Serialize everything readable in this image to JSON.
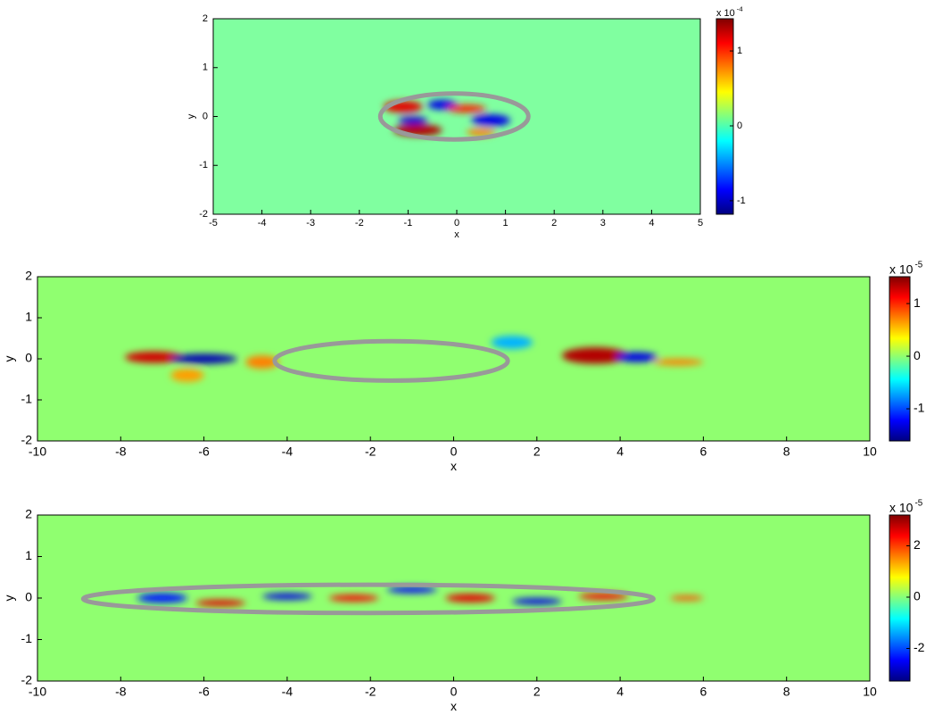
{
  "chart_data": [
    {
      "type": "heatmap",
      "xlabel": "x",
      "ylabel": "y",
      "xlim": [
        -5,
        5
      ],
      "ylim": [
        -2,
        2
      ],
      "xticks": [
        -5,
        -4,
        -3,
        -2,
        -1,
        0,
        1,
        2,
        3,
        4,
        5
      ],
      "yticks": [
        -2,
        -1,
        0,
        1,
        2
      ],
      "background": "#80ffa0",
      "colormap": "jet",
      "ellipse": {
        "cx": -0.05,
        "cy": 0,
        "rx": 1.52,
        "ry": 0.47,
        "color": "#999999"
      },
      "colorbar": {
        "clim": [
          -1.18,
          1.43
        ],
        "ticks": [
          -1,
          0,
          1
        ],
        "scale": "x 10",
        "exponent": "-4"
      }
    },
    {
      "type": "heatmap",
      "xlabel": "x",
      "ylabel": "y",
      "xlim": [
        -10,
        10
      ],
      "ylim": [
        -2,
        2
      ],
      "xticks": [
        -10,
        -8,
        -6,
        -4,
        -2,
        0,
        2,
        4,
        6,
        8,
        10
      ],
      "yticks": [
        -2,
        -1,
        0,
        1,
        2
      ],
      "background": "#90ff70",
      "colormap": "jet",
      "ellipse": {
        "cx": -1.5,
        "cy": -0.05,
        "rx": 2.8,
        "ry": 0.48,
        "color": "#999999"
      },
      "colorbar": {
        "clim": [
          -1.61,
          1.51
        ],
        "ticks": [
          -1,
          0,
          1
        ],
        "scale": "x 10",
        "exponent": "-5"
      }
    },
    {
      "type": "heatmap",
      "xlabel": "x",
      "ylabel": "y",
      "xlim": [
        -10,
        10
      ],
      "ylim": [
        -2,
        2
      ],
      "xticks": [
        -10,
        -8,
        -6,
        -4,
        -2,
        0,
        2,
        4,
        6,
        8,
        10
      ],
      "yticks": [
        -2,
        -1,
        0,
        1,
        2
      ],
      "background": "#90ff70",
      "colormap": "jet",
      "ellipse": {
        "cx": -2.05,
        "cy": -0.02,
        "rx": 6.85,
        "ry": 0.34,
        "color": "#999999"
      },
      "colorbar": {
        "clim": [
          -3.27,
          3.2
        ],
        "ticks": [
          -2,
          0,
          2
        ],
        "scale": "x 10",
        "exponent": "-5"
      }
    }
  ]
}
